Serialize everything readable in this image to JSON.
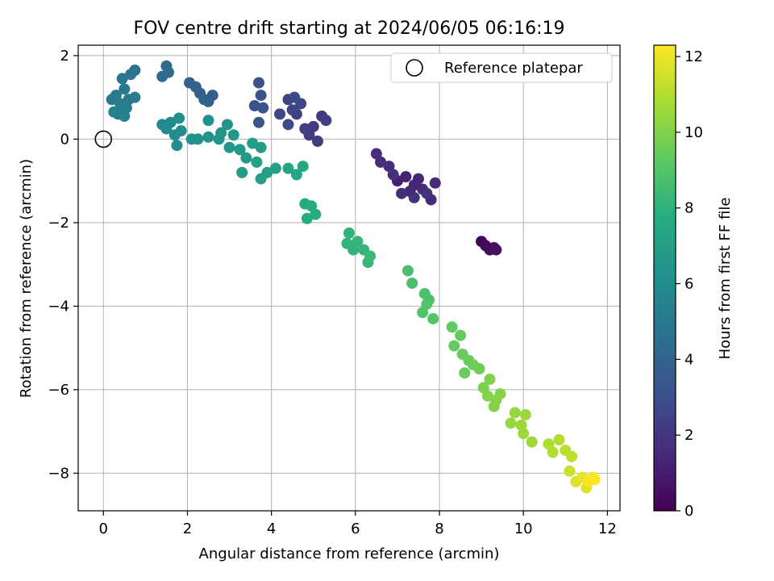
{
  "chart_data": {
    "type": "scatter",
    "title": "FOV centre drift starting at 2024/06/05 06:16:19",
    "xlabel": "Angular distance from reference (arcmin)",
    "ylabel": "Rotation from reference (arcmin)",
    "xlim": [
      -0.6,
      12.3
    ],
    "ylim": [
      -8.9,
      2.25
    ],
    "xticks": [
      0,
      2,
      4,
      6,
      8,
      10,
      12
    ],
    "yticks": [
      -8,
      -6,
      -4,
      -2,
      0,
      2
    ],
    "grid": true,
    "legend": {
      "placement": "top-right",
      "entries": [
        "Reference platepar"
      ]
    },
    "colorbar": {
      "label": "Hours from first FF file",
      "range": [
        0,
        12.3
      ],
      "ticks": [
        0,
        2,
        4,
        6,
        8,
        10,
        12
      ],
      "colormap": "viridis"
    },
    "reference_point": {
      "x": 0,
      "y": 0
    },
    "series": [
      {
        "color_by": "hours",
        "points": [
          {
            "x": 9.0,
            "y": -2.45,
            "c": 0.2
          },
          {
            "x": 9.1,
            "y": -2.55,
            "c": 0.3
          },
          {
            "x": 9.2,
            "y": -2.65,
            "c": 0.4
          },
          {
            "x": 9.3,
            "y": -2.6,
            "c": 0.5
          },
          {
            "x": 9.35,
            "y": -2.65,
            "c": 0.6
          },
          {
            "x": 7.0,
            "y": -1.0,
            "c": 1.2
          },
          {
            "x": 7.2,
            "y": -0.9,
            "c": 1.3
          },
          {
            "x": 7.4,
            "y": -1.1,
            "c": 1.35
          },
          {
            "x": 7.5,
            "y": -0.95,
            "c": 1.4
          },
          {
            "x": 7.3,
            "y": -1.25,
            "c": 1.45
          },
          {
            "x": 7.6,
            "y": -1.2,
            "c": 1.5
          },
          {
            "x": 7.8,
            "y": -1.45,
            "c": 1.5
          },
          {
            "x": 7.9,
            "y": -1.05,
            "c": 1.55
          },
          {
            "x": 7.1,
            "y": -1.3,
            "c": 1.6
          },
          {
            "x": 6.8,
            "y": -0.65,
            "c": 1.6
          },
          {
            "x": 6.5,
            "y": -0.35,
            "c": 1.65
          },
          {
            "x": 6.6,
            "y": -0.55,
            "c": 1.7
          },
          {
            "x": 6.9,
            "y": -0.85,
            "c": 1.75
          },
          {
            "x": 7.4,
            "y": -1.4,
            "c": 1.8
          },
          {
            "x": 7.7,
            "y": -1.3,
            "c": 1.85
          },
          {
            "x": 5.2,
            "y": 0.55,
            "c": 2.1
          },
          {
            "x": 5.0,
            "y": 0.3,
            "c": 2.15
          },
          {
            "x": 4.9,
            "y": 0.1,
            "c": 2.2
          },
          {
            "x": 5.1,
            "y": -0.05,
            "c": 2.25
          },
          {
            "x": 5.3,
            "y": 0.45,
            "c": 2.3
          },
          {
            "x": 4.8,
            "y": 0.25,
            "c": 2.35
          },
          {
            "x": 4.6,
            "y": 0.6,
            "c": 2.4
          },
          {
            "x": 4.4,
            "y": 0.95,
            "c": 2.5
          },
          {
            "x": 4.5,
            "y": 0.7,
            "c": 2.55
          },
          {
            "x": 4.7,
            "y": 0.85,
            "c": 2.6
          },
          {
            "x": 4.2,
            "y": 0.6,
            "c": 2.7
          },
          {
            "x": 4.4,
            "y": 0.35,
            "c": 2.75
          },
          {
            "x": 4.55,
            "y": 1.0,
            "c": 2.8
          },
          {
            "x": 3.7,
            "y": 1.35,
            "c": 3.1
          },
          {
            "x": 3.75,
            "y": 1.05,
            "c": 3.15
          },
          {
            "x": 3.6,
            "y": 0.8,
            "c": 3.2
          },
          {
            "x": 3.8,
            "y": 0.75,
            "c": 3.25
          },
          {
            "x": 3.7,
            "y": 0.4,
            "c": 3.3
          },
          {
            "x": 2.6,
            "y": 1.05,
            "c": 3.7
          },
          {
            "x": 2.5,
            "y": 0.9,
            "c": 3.75
          },
          {
            "x": 2.3,
            "y": 1.1,
            "c": 3.8
          },
          {
            "x": 2.2,
            "y": 1.25,
            "c": 3.85
          },
          {
            "x": 2.05,
            "y": 1.35,
            "c": 3.9
          },
          {
            "x": 2.4,
            "y": 0.95,
            "c": 3.95
          },
          {
            "x": 1.5,
            "y": 1.75,
            "c": 4.3
          },
          {
            "x": 1.4,
            "y": 1.5,
            "c": 4.35
          },
          {
            "x": 1.55,
            "y": 1.6,
            "c": 4.4
          },
          {
            "x": 0.75,
            "y": 1.65,
            "c": 4.8
          },
          {
            "x": 0.65,
            "y": 1.55,
            "c": 4.85
          },
          {
            "x": 0.45,
            "y": 1.45,
            "c": 4.9
          },
          {
            "x": 0.5,
            "y": 1.2,
            "c": 5.0
          },
          {
            "x": 0.3,
            "y": 1.05,
            "c": 5.05
          },
          {
            "x": 0.2,
            "y": 0.95,
            "c": 5.1
          },
          {
            "x": 0.6,
            "y": 0.95,
            "c": 5.15
          },
          {
            "x": 0.75,
            "y": 1.0,
            "c": 5.2
          },
          {
            "x": 0.4,
            "y": 0.85,
            "c": 5.25
          },
          {
            "x": 0.55,
            "y": 0.75,
            "c": 5.3
          },
          {
            "x": 0.35,
            "y": 0.6,
            "c": 5.35
          },
          {
            "x": 0.5,
            "y": 0.55,
            "c": 5.4
          },
          {
            "x": 0.25,
            "y": 0.65,
            "c": 5.45
          },
          {
            "x": 1.4,
            "y": 0.35,
            "c": 5.8
          },
          {
            "x": 1.5,
            "y": 0.25,
            "c": 5.85
          },
          {
            "x": 1.6,
            "y": 0.4,
            "c": 5.9
          },
          {
            "x": 1.7,
            "y": 0.1,
            "c": 5.95
          },
          {
            "x": 1.85,
            "y": 0.2,
            "c": 6.0
          },
          {
            "x": 1.75,
            "y": -0.15,
            "c": 6.05
          },
          {
            "x": 1.8,
            "y": 0.5,
            "c": 6.05
          },
          {
            "x": 2.1,
            "y": 0.0,
            "c": 6.2
          },
          {
            "x": 2.25,
            "y": 0.0,
            "c": 6.25
          },
          {
            "x": 2.5,
            "y": 0.45,
            "c": 6.3
          },
          {
            "x": 2.5,
            "y": 0.05,
            "c": 6.35
          },
          {
            "x": 2.8,
            "y": 0.15,
            "c": 6.4
          },
          {
            "x": 2.95,
            "y": 0.35,
            "c": 6.45
          },
          {
            "x": 2.75,
            "y": 0.0,
            "c": 6.5
          },
          {
            "x": 3.1,
            "y": 0.1,
            "c": 6.55
          },
          {
            "x": 3.0,
            "y": -0.2,
            "c": 6.6
          },
          {
            "x": 3.25,
            "y": -0.25,
            "c": 6.65
          },
          {
            "x": 3.4,
            "y": -0.45,
            "c": 6.7
          },
          {
            "x": 3.3,
            "y": -0.8,
            "c": 6.75
          },
          {
            "x": 3.55,
            "y": -0.1,
            "c": 6.8
          },
          {
            "x": 3.75,
            "y": -0.2,
            "c": 6.85
          },
          {
            "x": 3.65,
            "y": -0.55,
            "c": 6.9
          },
          {
            "x": 3.9,
            "y": -0.8,
            "c": 7.0
          },
          {
            "x": 3.75,
            "y": -0.95,
            "c": 7.05
          },
          {
            "x": 4.1,
            "y": -0.7,
            "c": 7.1
          },
          {
            "x": 4.4,
            "y": -0.7,
            "c": 7.3
          },
          {
            "x": 4.6,
            "y": -0.85,
            "c": 7.35
          },
          {
            "x": 4.75,
            "y": -0.65,
            "c": 7.4
          },
          {
            "x": 4.8,
            "y": -1.55,
            "c": 7.6
          },
          {
            "x": 4.95,
            "y": -1.6,
            "c": 7.65
          },
          {
            "x": 4.85,
            "y": -1.9,
            "c": 7.7
          },
          {
            "x": 5.05,
            "y": -1.8,
            "c": 7.75
          },
          {
            "x": 5.85,
            "y": -2.25,
            "c": 8.0
          },
          {
            "x": 5.8,
            "y": -2.5,
            "c": 8.05
          },
          {
            "x": 5.95,
            "y": -2.65,
            "c": 8.1
          },
          {
            "x": 6.05,
            "y": -2.45,
            "c": 8.15
          },
          {
            "x": 6.2,
            "y": -2.65,
            "c": 8.2
          },
          {
            "x": 6.3,
            "y": -2.95,
            "c": 8.25
          },
          {
            "x": 6.35,
            "y": -2.8,
            "c": 8.3
          },
          {
            "x": 7.25,
            "y": -3.15,
            "c": 8.7
          },
          {
            "x": 7.35,
            "y": -3.45,
            "c": 8.75
          },
          {
            "x": 7.65,
            "y": -3.7,
            "c": 8.8
          },
          {
            "x": 7.75,
            "y": -3.85,
            "c": 8.85
          },
          {
            "x": 7.6,
            "y": -4.15,
            "c": 8.9
          },
          {
            "x": 7.85,
            "y": -4.3,
            "c": 8.95
          },
          {
            "x": 7.7,
            "y": -3.95,
            "c": 9.0
          },
          {
            "x": 8.3,
            "y": -4.5,
            "c": 9.3
          },
          {
            "x": 8.5,
            "y": -4.7,
            "c": 9.35
          },
          {
            "x": 8.35,
            "y": -4.95,
            "c": 9.4
          },
          {
            "x": 8.55,
            "y": -5.15,
            "c": 9.45
          },
          {
            "x": 8.7,
            "y": -5.3,
            "c": 9.5
          },
          {
            "x": 8.6,
            "y": -5.6,
            "c": 9.55
          },
          {
            "x": 8.8,
            "y": -5.4,
            "c": 9.6
          },
          {
            "x": 8.95,
            "y": -5.5,
            "c": 9.65
          },
          {
            "x": 9.05,
            "y": -5.95,
            "c": 9.9
          },
          {
            "x": 9.2,
            "y": -5.75,
            "c": 9.95
          },
          {
            "x": 9.15,
            "y": -6.15,
            "c": 10.0
          },
          {
            "x": 9.3,
            "y": -6.4,
            "c": 10.05
          },
          {
            "x": 9.45,
            "y": -6.1,
            "c": 10.1
          },
          {
            "x": 9.35,
            "y": -6.25,
            "c": 10.1
          },
          {
            "x": 9.8,
            "y": -6.55,
            "c": 10.4
          },
          {
            "x": 9.7,
            "y": -6.8,
            "c": 10.45
          },
          {
            "x": 9.95,
            "y": -6.85,
            "c": 10.5
          },
          {
            "x": 10.05,
            "y": -6.6,
            "c": 10.5
          },
          {
            "x": 10.0,
            "y": -7.05,
            "c": 10.55
          },
          {
            "x": 10.2,
            "y": -7.25,
            "c": 10.6
          },
          {
            "x": 10.6,
            "y": -7.3,
            "c": 10.9
          },
          {
            "x": 10.7,
            "y": -7.5,
            "c": 10.95
          },
          {
            "x": 10.85,
            "y": -7.2,
            "c": 11.0
          },
          {
            "x": 11.0,
            "y": -7.45,
            "c": 11.05
          },
          {
            "x": 11.15,
            "y": -7.6,
            "c": 11.2
          },
          {
            "x": 11.1,
            "y": -7.95,
            "c": 11.4
          },
          {
            "x": 11.25,
            "y": -8.2,
            "c": 11.6
          },
          {
            "x": 11.5,
            "y": -8.35,
            "c": 11.8
          },
          {
            "x": 11.4,
            "y": -8.1,
            "c": 11.9
          },
          {
            "x": 11.65,
            "y": -8.1,
            "c": 12.1
          },
          {
            "x": 11.55,
            "y": -8.2,
            "c": 12.2
          },
          {
            "x": 11.7,
            "y": -8.15,
            "c": 12.3
          }
        ]
      }
    ]
  }
}
